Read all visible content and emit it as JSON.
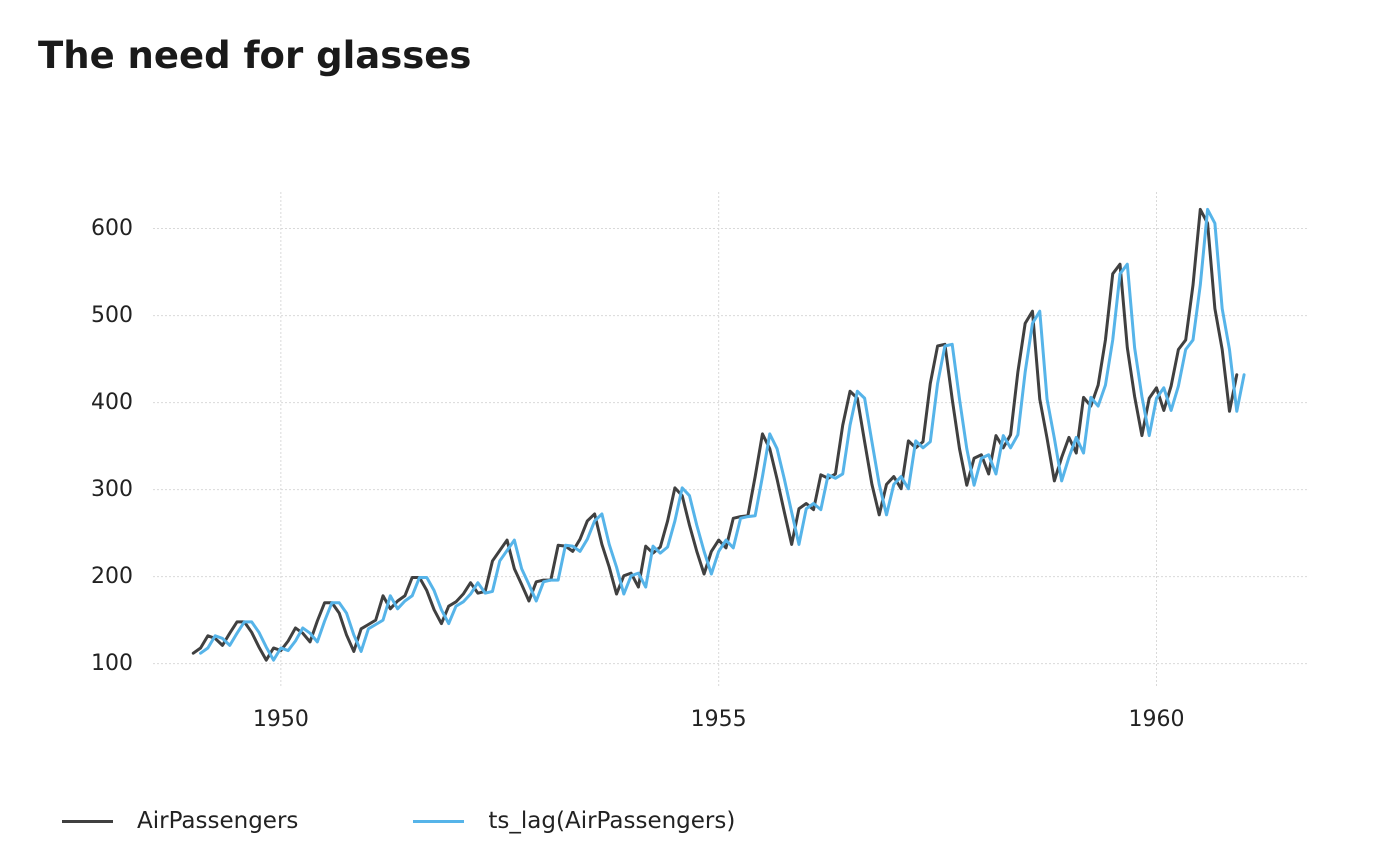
{
  "title": "The need for glasses",
  "colors": {
    "background": "#ffffff",
    "grid": "#d9d9d9",
    "text": "#222222"
  },
  "chart_data": {
    "type": "line",
    "title": "The need for glasses",
    "xlabel": "",
    "ylabel": "",
    "xlim": [
      1948.54,
      1961.73
    ],
    "ylim": [
      72,
      642
    ],
    "x_ticks": [
      1950,
      1955,
      1960
    ],
    "x_tick_labels": [
      "1950",
      "1955",
      "1960"
    ],
    "y_ticks": [
      100,
      200,
      300,
      400,
      500,
      600
    ],
    "y_tick_labels": [
      "100",
      "200",
      "300",
      "400",
      "500",
      "600"
    ],
    "grid": true,
    "legend_position": "bottom-left",
    "series": [
      {
        "name": "AirPassengers",
        "color": "#404040",
        "x_start": 1949.0,
        "x_step": 0.08333333,
        "values": [
          112,
          118,
          132,
          129,
          121,
          135,
          148,
          148,
          136,
          119,
          104,
          118,
          115,
          126,
          141,
          135,
          125,
          149,
          170,
          170,
          158,
          133,
          114,
          140,
          145,
          150,
          178,
          163,
          172,
          178,
          199,
          199,
          184,
          162,
          146,
          166,
          171,
          180,
          193,
          181,
          183,
          218,
          230,
          242,
          209,
          191,
          172,
          194,
          196,
          196,
          236,
          235,
          229,
          243,
          264,
          272,
          237,
          211,
          180,
          201,
          204,
          188,
          235,
          227,
          234,
          264,
          302,
          293,
          259,
          229,
          203,
          229,
          242,
          233,
          267,
          269,
          270,
          315,
          364,
          347,
          312,
          274,
          237,
          278,
          284,
          277,
          317,
          313,
          318,
          374,
          413,
          405,
          355,
          306,
          271,
          306,
          315,
          301,
          356,
          348,
          355,
          422,
          465,
          467,
          404,
          347,
          305,
          336,
          340,
          318,
          362,
          348,
          363,
          435,
          491,
          505,
          404,
          359,
          310,
          337,
          360,
          342,
          406,
          396,
          420,
          472,
          548,
          559,
          463,
          407,
          362,
          405,
          417,
          391,
          419,
          461,
          472,
          535,
          622,
          606,
          508,
          461,
          390,
          432
        ]
      },
      {
        "name": "ts_lag(AirPassengers)",
        "color": "#56b4e9",
        "x_start": 1949.08333333,
        "x_step": 0.08333333,
        "values": [
          112,
          118,
          132,
          129,
          121,
          135,
          148,
          148,
          136,
          119,
          104,
          118,
          115,
          126,
          141,
          135,
          125,
          149,
          170,
          170,
          158,
          133,
          114,
          140,
          145,
          150,
          178,
          163,
          172,
          178,
          199,
          199,
          184,
          162,
          146,
          166,
          171,
          180,
          193,
          181,
          183,
          218,
          230,
          242,
          209,
          191,
          172,
          194,
          196,
          196,
          236,
          235,
          229,
          243,
          264,
          272,
          237,
          211,
          180,
          201,
          204,
          188,
          235,
          227,
          234,
          264,
          302,
          293,
          259,
          229,
          203,
          229,
          242,
          233,
          267,
          269,
          270,
          315,
          364,
          347,
          312,
          274,
          237,
          278,
          284,
          277,
          317,
          313,
          318,
          374,
          413,
          405,
          355,
          306,
          271,
          306,
          315,
          301,
          356,
          348,
          355,
          422,
          465,
          467,
          404,
          347,
          305,
          336,
          340,
          318,
          362,
          348,
          363,
          435,
          491,
          505,
          404,
          359,
          310,
          337,
          360,
          342,
          406,
          396,
          420,
          472,
          548,
          559,
          463,
          407,
          362,
          405,
          417,
          391,
          419,
          461,
          472,
          535,
          622,
          606,
          508,
          461,
          390,
          432
        ]
      }
    ]
  }
}
